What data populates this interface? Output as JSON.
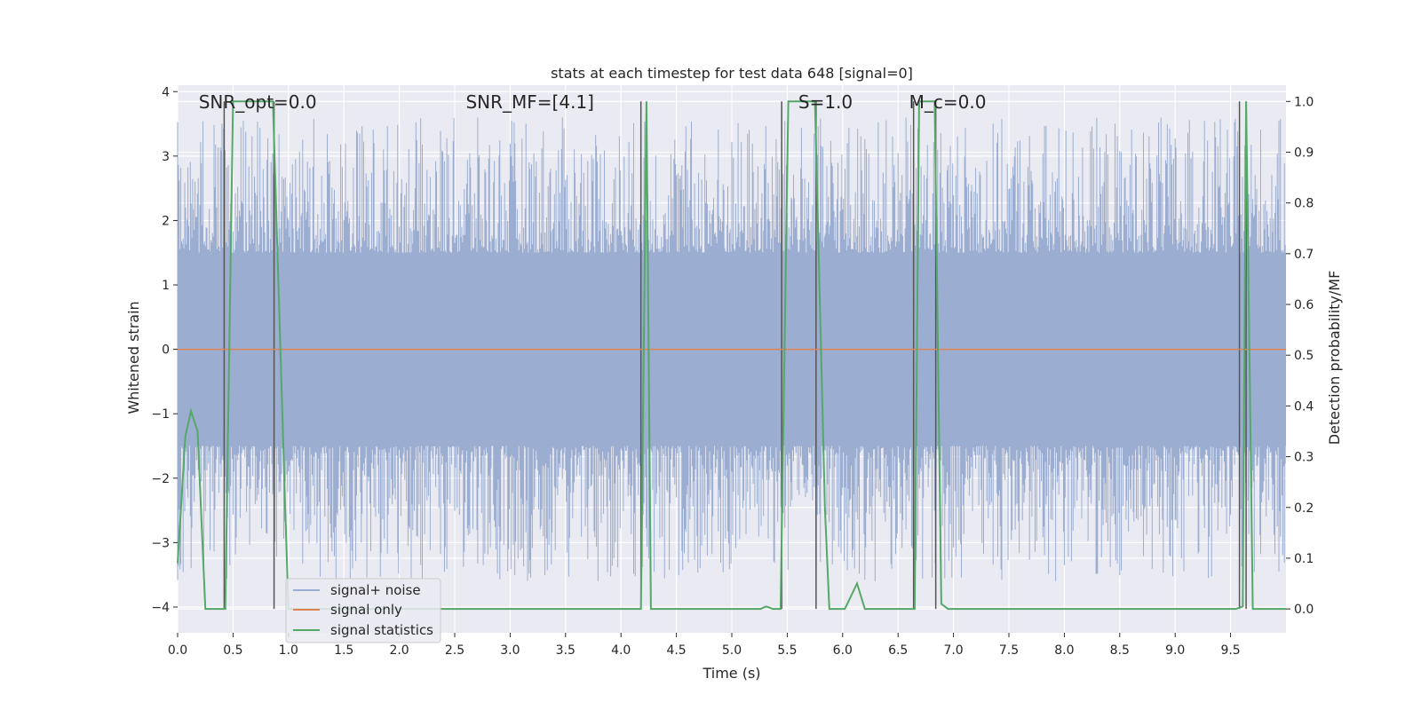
{
  "chart_data": {
    "type": "line",
    "title": "stats at each timestep for test data 648 [signal=0]",
    "xlabel": "Time (s)",
    "ylabel_left": "Whitened strain",
    "ylabel_right": "Detection probability/MF",
    "xlim": [
      0.0,
      10.0
    ],
    "ylim_left": [
      -4.4,
      4.1
    ],
    "ylim_right": [
      -0.047,
      1.032
    ],
    "x_ticks": [
      0.0,
      0.5,
      1.0,
      1.5,
      2.0,
      2.5,
      3.0,
      3.5,
      4.0,
      4.5,
      5.0,
      5.5,
      6.0,
      6.5,
      7.0,
      7.5,
      8.0,
      8.5,
      9.0,
      9.5
    ],
    "x_tick_labels": [
      "0.0",
      "0.5",
      "1.0",
      "1.5",
      "2.0",
      "2.5",
      "3.0",
      "3.5",
      "4.0",
      "4.5",
      "5.0",
      "5.5",
      "6.0",
      "6.5",
      "7.0",
      "7.5",
      "8.0",
      "8.5",
      "9.0",
      "9.5"
    ],
    "y_left_ticks": [
      4,
      3,
      2,
      1,
      0,
      -1,
      -2,
      -3,
      -4
    ],
    "y_left_tick_labels": [
      "4",
      "3",
      "2",
      "1",
      "0",
      "−1",
      "−2",
      "−3",
      "−4"
    ],
    "y_right_ticks": [
      1.0,
      0.9,
      0.8,
      0.7,
      0.6,
      0.5,
      0.4,
      0.3,
      0.2,
      0.1,
      0.0
    ],
    "y_right_tick_labels": [
      "1.0",
      "0.9",
      "0.8",
      "0.7",
      "0.6",
      "0.5",
      "0.4",
      "0.3",
      "0.2",
      "0.1",
      "0.0"
    ],
    "grid": true,
    "legend_position": "bottom-left",
    "annotations": [
      {
        "text": "SNR_opt=0.0",
        "x": 0.19
      },
      {
        "text": "SNR_MF=[4.1]",
        "x": 2.6
      },
      {
        "text": "S=1.0",
        "x": 5.6
      },
      {
        "text": "M_c=0.0",
        "x": 6.6
      }
    ],
    "vertical_markers": [
      0.42,
      0.87,
      4.18,
      5.45,
      5.76,
      6.64,
      6.84,
      9.58,
      9.64
    ],
    "series": [
      {
        "name": "signal+ noise",
        "color": "#4c72b0",
        "kind": "noise",
        "axis": "left",
        "amplitude_core": 1.5,
        "amplitude_peak": 3.6
      },
      {
        "name": "signal only",
        "color": "#dd8452",
        "axis": "left",
        "x": [
          0.0,
          10.0
        ],
        "y": [
          0.0,
          0.0
        ]
      },
      {
        "name": "signal statistics",
        "color": "#55a868",
        "axis": "right",
        "x": [
          0.0,
          0.07,
          0.12,
          0.18,
          0.25,
          0.36,
          0.43,
          0.5,
          0.86,
          0.97,
          1.0,
          4.18,
          4.23,
          4.27,
          4.32,
          5.26,
          5.31,
          5.37,
          5.44,
          5.51,
          5.75,
          5.84,
          5.88,
          5.94,
          6.02,
          6.13,
          6.2,
          6.65,
          6.69,
          6.83,
          6.89,
          6.95,
          9.55,
          9.61,
          9.64,
          9.7,
          10.0
        ],
        "y": [
          0.09,
          0.34,
          0.39,
          0.35,
          0.0,
          0.0,
          0.0,
          1.0,
          1.0,
          0.2,
          0.0,
          0.0,
          1.0,
          0.0,
          0.0,
          0.0,
          0.005,
          0.0,
          0.0,
          1.0,
          1.0,
          0.2,
          0.0,
          0.0,
          0.0,
          0.05,
          0.0,
          0.0,
          1.0,
          1.0,
          0.01,
          0.0,
          0.0,
          0.005,
          1.0,
          0.0,
          0.0
        ]
      }
    ]
  }
}
